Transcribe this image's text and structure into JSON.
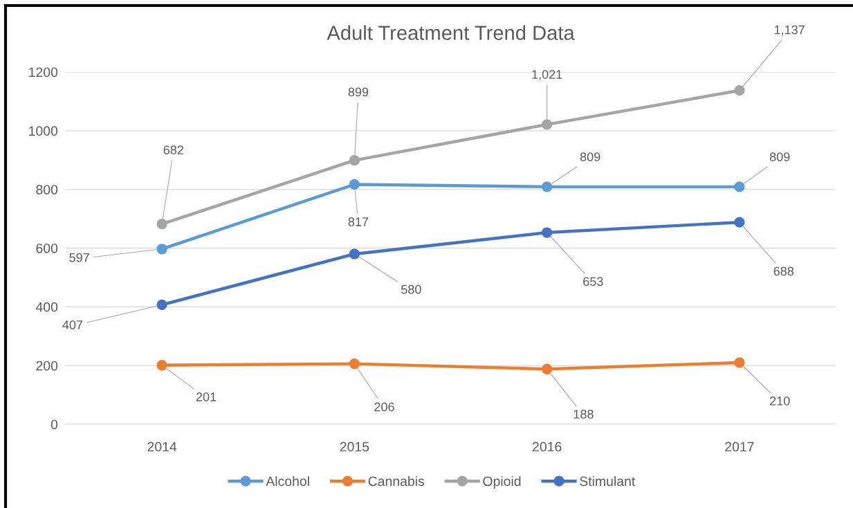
{
  "chart_data": {
    "type": "line",
    "title": "Adult Treatment Trend Data",
    "categories": [
      "2014",
      "2015",
      "2016",
      "2017"
    ],
    "series": [
      {
        "name": "Alcohol",
        "color": "#5b9bd5",
        "values": [
          597,
          817,
          809,
          809
        ],
        "value_labels": [
          "597",
          "817",
          "809",
          "809"
        ]
      },
      {
        "name": "Cannabis",
        "color": "#ed7d31",
        "values": [
          201,
          206,
          188,
          210
        ],
        "value_labels": [
          "201",
          "206",
          "188",
          "210"
        ]
      },
      {
        "name": "Opioid",
        "color": "#a5a5a5",
        "values": [
          682,
          899,
          1021,
          1137
        ],
        "value_labels": [
          "682",
          "899",
          "1,021",
          "1,137"
        ]
      },
      {
        "name": "Stimulant",
        "color": "#4472c4",
        "values": [
          407,
          580,
          653,
          688
        ],
        "value_labels": [
          "407",
          "580",
          "653",
          "688"
        ]
      }
    ],
    "ylim": [
      0,
      1200
    ],
    "yticks": [
      0,
      200,
      400,
      600,
      800,
      1000,
      1200
    ],
    "grid": "y",
    "legend": "bottom",
    "marker": "circle",
    "line_style": "solid"
  }
}
